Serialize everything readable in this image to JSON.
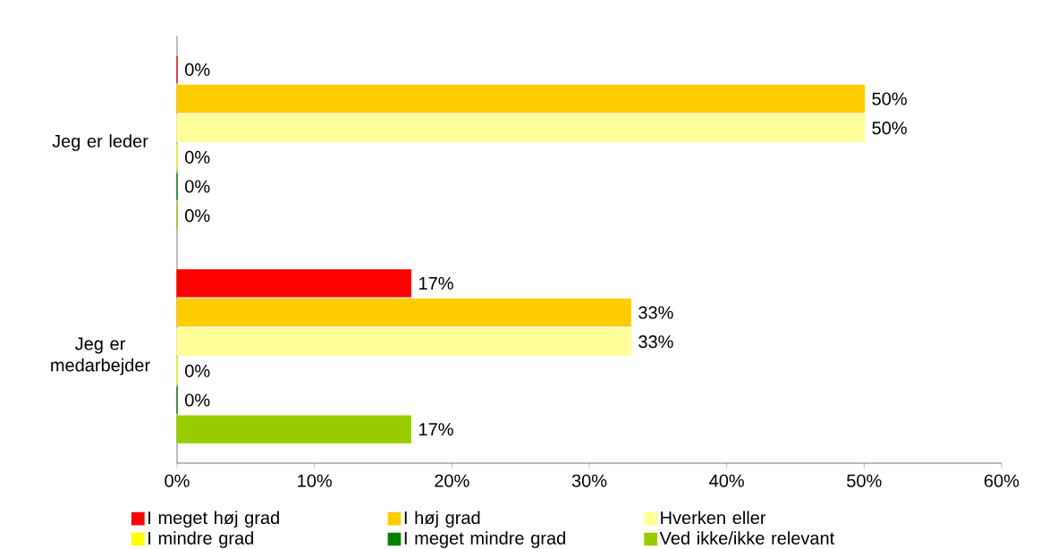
{
  "chart_data": {
    "type": "bar",
    "orientation": "horizontal",
    "categories": [
      "Jeg er leder",
      "Jeg er medarbejder"
    ],
    "series": [
      {
        "name": "I meget høj grad",
        "color": "#ff0000",
        "values": [
          0,
          17
        ],
        "value_labels": [
          "0%",
          "17%"
        ]
      },
      {
        "name": "I høj grad",
        "color": "#ffcc00",
        "values": [
          50,
          33
        ],
        "value_labels": [
          "50%",
          "33%"
        ]
      },
      {
        "name": "Hverken eller",
        "color": "#ffff99",
        "values": [
          50,
          33
        ],
        "value_labels": [
          "50%",
          "33%"
        ]
      },
      {
        "name": "I mindre grad",
        "color": "#ffff00",
        "values": [
          0,
          0
        ],
        "value_labels": [
          "0%",
          "0%"
        ]
      },
      {
        "name": "I meget mindre grad",
        "color": "#008000",
        "values": [
          0,
          0
        ],
        "value_labels": [
          "0%",
          "0%"
        ]
      },
      {
        "name": "Ved ikke/ikke relevant",
        "color": "#99cc00",
        "values": [
          0,
          17
        ],
        "value_labels": [
          "0%",
          "17%"
        ]
      }
    ],
    "xlim": [
      0,
      60
    ],
    "xticks": [
      {
        "value": 0,
        "label": "0%"
      },
      {
        "value": 10,
        "label": "10%"
      },
      {
        "value": 20,
        "label": "20%"
      },
      {
        "value": 30,
        "label": "30%"
      },
      {
        "value": 40,
        "label": "40%"
      },
      {
        "value": 50,
        "label": "50%"
      },
      {
        "value": 60,
        "label": "60%"
      }
    ],
    "legend": "bottom",
    "grid": false
  }
}
